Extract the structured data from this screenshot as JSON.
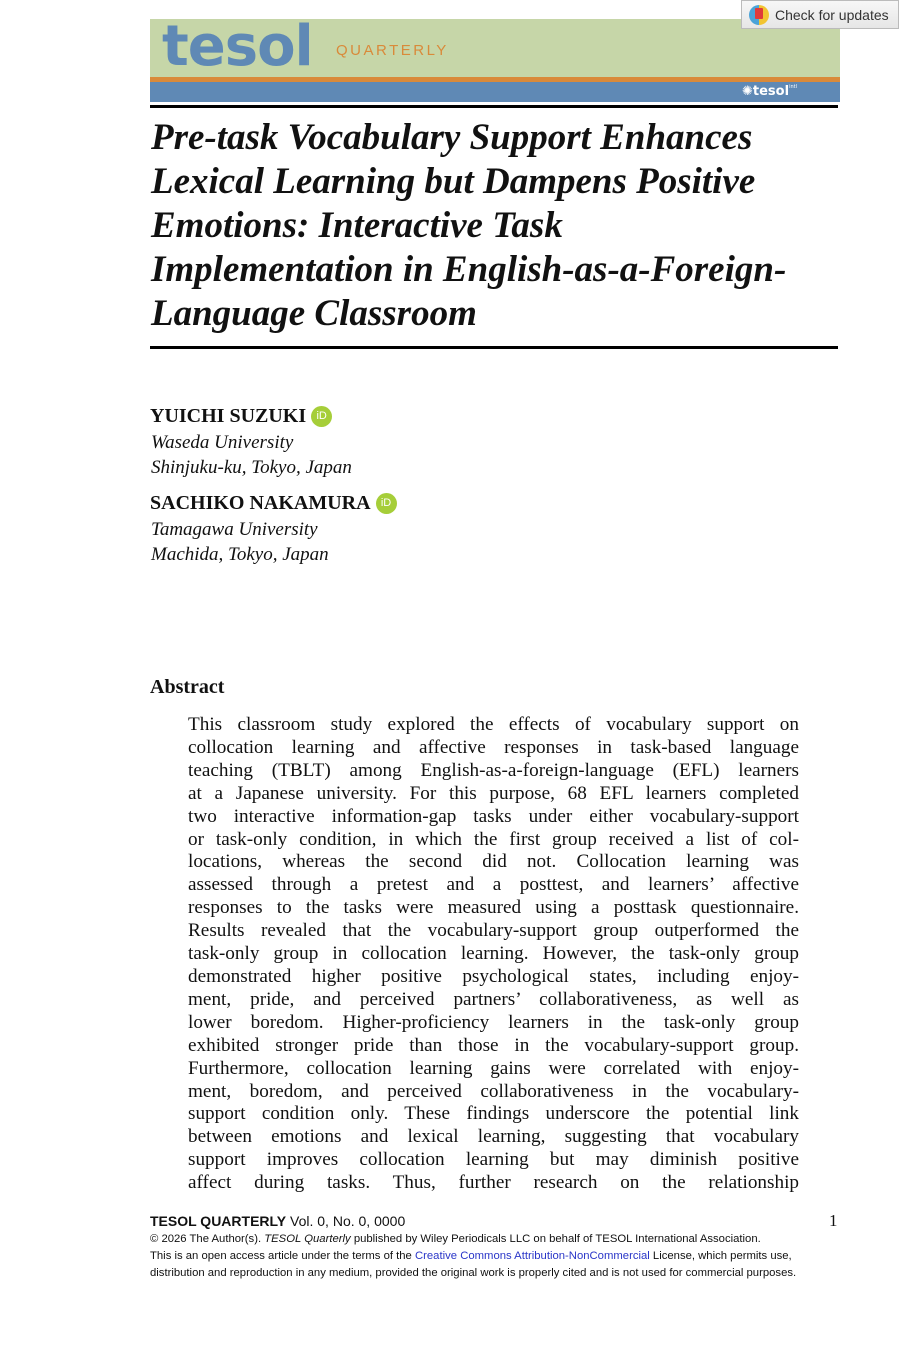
{
  "header": {
    "logo_text": "tesol",
    "logo_subtitle": "QUARTERLY",
    "association_logo": "tesol international association",
    "check_updates": "Check for updates",
    "colors": {
      "banner": "#c6d6a8",
      "accent_orange": "#d98a3a",
      "accent_blue": "#5f89b5"
    }
  },
  "title": "Pre-task Vocabulary Support Enhances Lexical Learning but Dampens Positive Emotions: Interactive Task Implementation in English-as-a-Foreign-Language Classroom",
  "title_lines": [
    "Pre-task Vocabulary Support Enhances",
    "Lexical Learning but Dampens Positive",
    "Emotions: Interactive Task",
    "Implementation in English-as-a-Foreign-",
    "Language Classroom"
  ],
  "authors": [
    {
      "name": "YUICHI SUZUKI",
      "orcid": "iD",
      "affiliation": "Waseda University",
      "location": "Shinjuku-ku, Tokyo, Japan"
    },
    {
      "name": "SACHIKO NAKAMURA",
      "orcid": "iD",
      "affiliation": "Tamagawa University",
      "location": "Machida, Tokyo, Japan"
    }
  ],
  "abstract": {
    "heading": "Abstract",
    "lines": [
      "This classroom study explored the effects of vocabulary support on",
      "collocation learning and affective responses in task-based language",
      "teaching (TBLT) among English-as-a-foreign-language (EFL) learners",
      "at a Japanese university. For this purpose, 68 EFL learners completed",
      "two interactive information-gap tasks under either vocabulary-support",
      "or task-only condition, in which the first group received a list of col-",
      "locations, whereas the second did not. Collocation learning was",
      "assessed through a pretest and a posttest, and learners’ affective",
      "responses to the tasks were measured using a posttask questionnaire.",
      "Results revealed that the vocabulary-support group outperformed the",
      "task-only group in collocation learning. However, the task-only group",
      "demonstrated higher positive psychological states, including enjoy-",
      "ment, pride, and perceived partners’ collaborativeness, as well as",
      "lower boredom. Higher-proficiency learners in the task-only group",
      "exhibited stronger pride than those in the vocabulary-support group.",
      "Furthermore, collocation learning gains were correlated with enjoy-",
      "ment, boredom, and perceived collaborativeness in the vocabulary-",
      "support condition only. These findings underscore the potential link",
      "between emotions and lexical learning, suggesting that vocabulary",
      "support improves collocation learning but may diminish positive",
      "affect during tasks. Thus, further research on the relationship"
    ]
  },
  "footer": {
    "journal": "TESOL QUARTERLY",
    "volume": "Vol. 0, No. 0,  0000",
    "page_number": "1",
    "copyright_pre": "© 2026 The Author(s). ",
    "copyright_journal": "TESOL Quarterly",
    "copyright_post": " published by Wiley Periodicals LLC on behalf of TESOL International Association.",
    "license_pre": "This is an open access article under the terms of the ",
    "license_link": "Creative Commons Attribution-NonCommercial",
    "license_post": " License, which permits use, distribution and reproduction in any medium, provided the original work is properly cited and is not used for commercial purposes.",
    "link_color": "#2a36c8"
  }
}
